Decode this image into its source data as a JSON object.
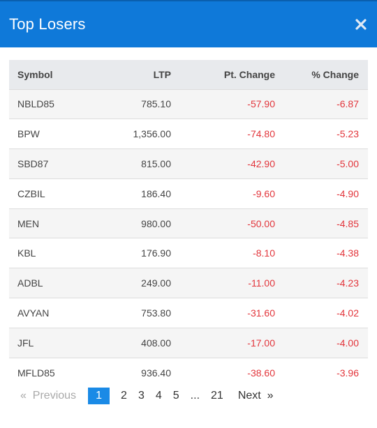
{
  "modal": {
    "title": "Top Losers",
    "close_icon": "close-icon"
  },
  "table": {
    "headers": {
      "symbol": "Symbol",
      "ltp": "LTP",
      "pt_change": "Pt. Change",
      "pct_change": "% Change"
    },
    "rows": [
      {
        "symbol": "NBLD85",
        "ltp": "785.10",
        "pt": "-57.90",
        "pct": "-6.87"
      },
      {
        "symbol": "BPW",
        "ltp": "1,356.00",
        "pt": "-74.80",
        "pct": "-5.23"
      },
      {
        "symbol": "SBD87",
        "ltp": "815.00",
        "pt": "-42.90",
        "pct": "-5.00"
      },
      {
        "symbol": "CZBIL",
        "ltp": "186.40",
        "pt": "-9.60",
        "pct": "-4.90"
      },
      {
        "symbol": "MEN",
        "ltp": "980.00",
        "pt": "-50.00",
        "pct": "-4.85"
      },
      {
        "symbol": "KBL",
        "ltp": "176.90",
        "pt": "-8.10",
        "pct": "-4.38"
      },
      {
        "symbol": "ADBL",
        "ltp": "249.00",
        "pt": "-11.00",
        "pct": "-4.23"
      },
      {
        "symbol": "AVYAN",
        "ltp": "753.80",
        "pt": "-31.60",
        "pct": "-4.02"
      },
      {
        "symbol": "JFL",
        "ltp": "408.00",
        "pt": "-17.00",
        "pct": "-4.00"
      },
      {
        "symbol": "MFLD85",
        "ltp": "936.40",
        "pt": "-38.60",
        "pct": "-3.96"
      }
    ]
  },
  "pagination": {
    "previous": "«  Previous",
    "pages": [
      "1",
      "2",
      "3",
      "4",
      "5",
      "...",
      "21"
    ],
    "active_page": "1",
    "next": "Next  »"
  },
  "colors": {
    "header": "#0f79d9",
    "negative": "#e2343a",
    "active_page": "#1a8ae6"
  }
}
